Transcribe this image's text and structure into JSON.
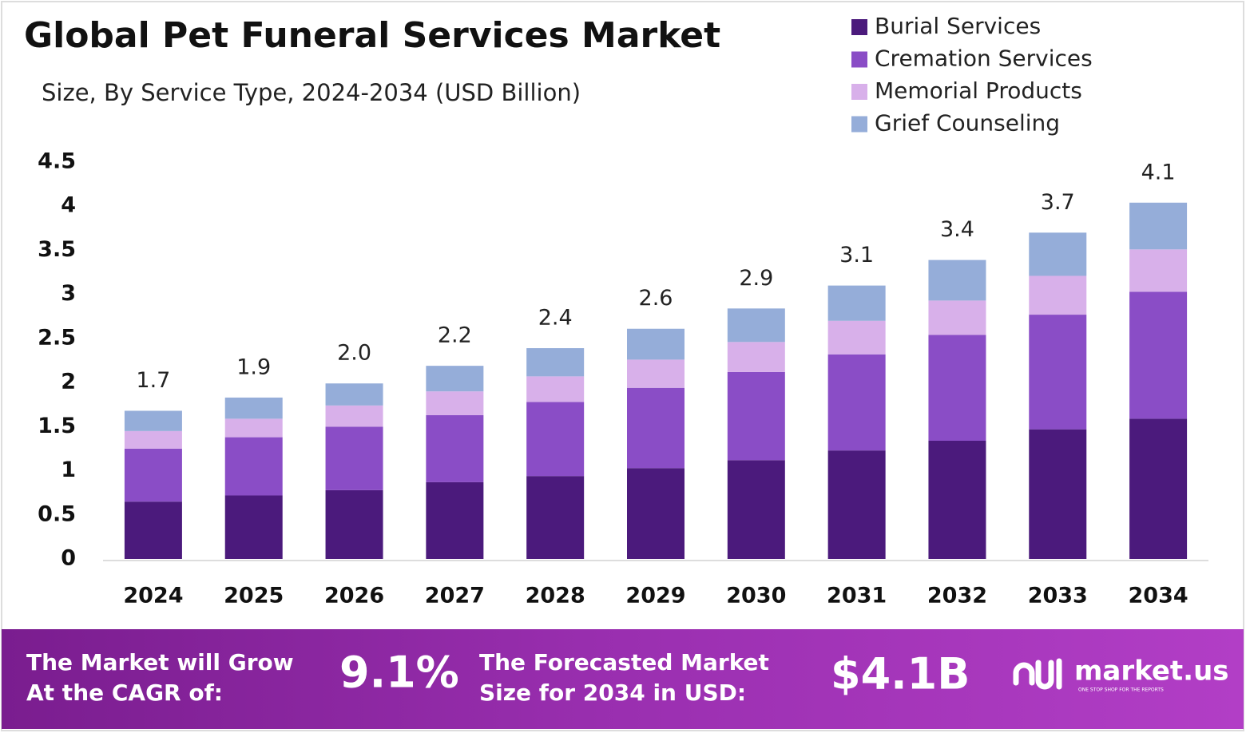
{
  "chart_data": {
    "type": "stacked_bar",
    "title": "Global Pet Funeral Services Market",
    "subtitle": "Size, By Service Type, 2024-2034 (USD Billion)",
    "categories": [
      "2024",
      "2025",
      "2026",
      "2027",
      "2028",
      "2029",
      "2030",
      "2031",
      "2032",
      "2033",
      "2034"
    ],
    "series": [
      {
        "name": "Burial Services",
        "color": "#4b1a7c",
        "values": [
          0.65,
          0.72,
          0.78,
          0.87,
          0.94,
          1.03,
          1.12,
          1.23,
          1.34,
          1.47,
          1.59
        ]
      },
      {
        "name": "Cremation Services",
        "color": "#8a4dc6",
        "values": [
          0.6,
          0.66,
          0.72,
          0.76,
          0.84,
          0.91,
          1.0,
          1.09,
          1.2,
          1.3,
          1.44
        ]
      },
      {
        "name": "Memorial Products",
        "color": "#d8b0ea",
        "values": [
          0.2,
          0.21,
          0.24,
          0.27,
          0.29,
          0.32,
          0.34,
          0.38,
          0.39,
          0.44,
          0.48
        ]
      },
      {
        "name": "Grief Counseling",
        "color": "#95add9",
        "values": [
          0.23,
          0.24,
          0.25,
          0.29,
          0.32,
          0.35,
          0.38,
          0.4,
          0.46,
          0.49,
          0.53
        ]
      }
    ],
    "totals": [
      "1.7",
      "1.9",
      "2.0",
      "2.2",
      "2.4",
      "2.6",
      "2.9",
      "3.1",
      "3.4",
      "3.7",
      "4.1"
    ],
    "ylim": [
      0,
      4.5
    ],
    "yticks": [
      0,
      0.5,
      1,
      1.5,
      2,
      2.5,
      3,
      3.5,
      4,
      4.5
    ],
    "legend": "top-right"
  },
  "footer": {
    "cagr_text": [
      "The Market will Grow",
      "At the CAGR of:"
    ],
    "cagr_value": "9.1%",
    "forecast_text": [
      "The Forecasted Market",
      "Size for 2034 in USD:"
    ],
    "forecast_value": "$4.1B",
    "brand": "market.us",
    "tagline": "ONE STOP SHOP FOR THE REPORTS"
  }
}
